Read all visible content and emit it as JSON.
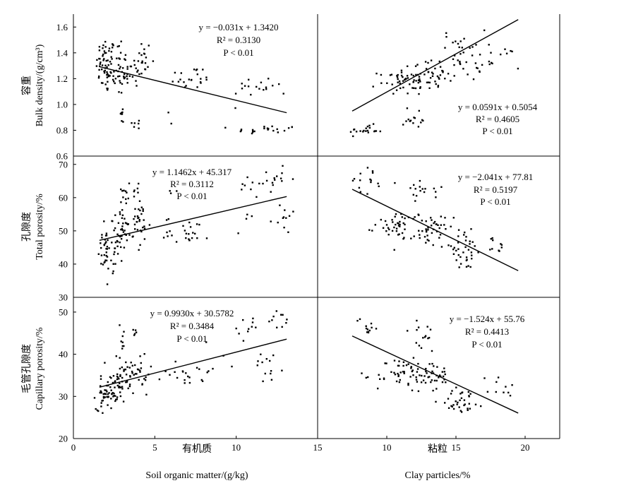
{
  "figure": {
    "x_labels": [
      {
        "cn": "有机质",
        "en": "Soil organic matter/(g/kg)"
      },
      {
        "cn": "粘粒",
        "en": "Clay particles/%"
      }
    ],
    "y_labels": [
      {
        "cn": "容重",
        "en": "Bulk density/(g/cm³)"
      },
      {
        "cn": "孔隙度",
        "en": "Total porosity/%"
      },
      {
        "cn": "毛管孔隙度",
        "en": "Capillary porosity/%"
      }
    ]
  },
  "chart_data": [
    {
      "type": "scatter",
      "row": 0,
      "col": 0,
      "xlabel": "Soil organic matter/(g/kg)",
      "ylabel": "Bulk density/(g/cm³)",
      "xlim": [
        0,
        15
      ],
      "ylim": [
        0.6,
        1.7
      ],
      "xticks": [
        0,
        5,
        10,
        15
      ],
      "yticks": [
        0.6,
        0.8,
        1.0,
        1.2,
        1.4,
        1.6
      ],
      "yticklabels": [
        "0.6",
        "0.8",
        "1.0",
        "1.2",
        "1.4",
        "1.6"
      ],
      "fit": {
        "slope": -0.031,
        "intercept": 1.342
      },
      "annotation": {
        "equation": "y = −0.031x + 1.3420",
        "r2_label": "R² = 0.3130",
        "p_label": "P < 0.01",
        "pos": "top-right"
      },
      "clusters": [
        {
          "cx": 2.0,
          "cy": 1.3,
          "sx": 0.3,
          "sy": 0.11,
          "n": 55
        },
        {
          "cx": 2.7,
          "cy": 1.3,
          "sx": 0.35,
          "sy": 0.12,
          "n": 35
        },
        {
          "cx": 3.2,
          "cy": 1.24,
          "sx": 0.4,
          "sy": 0.06,
          "n": 18
        },
        {
          "cx": 4.2,
          "cy": 1.32,
          "sx": 0.3,
          "sy": 0.1,
          "n": 25
        },
        {
          "cx": 3.0,
          "cy": 0.92,
          "sx": 0.1,
          "sy": 0.04,
          "n": 8
        },
        {
          "cx": 3.9,
          "cy": 0.85,
          "sx": 0.15,
          "sy": 0.02,
          "n": 6
        },
        {
          "cx": 7.2,
          "cy": 1.2,
          "sx": 0.7,
          "sy": 0.05,
          "n": 22
        },
        {
          "cx": 6.0,
          "cy": 0.92,
          "sx": 0.1,
          "sy": 0.05,
          "n": 2
        },
        {
          "cx": 11.5,
          "cy": 1.14,
          "sx": 1.0,
          "sy": 0.04,
          "n": 18
        },
        {
          "cx": 11.8,
          "cy": 0.8,
          "sx": 1.0,
          "sy": 0.02,
          "n": 22
        }
      ]
    },
    {
      "type": "scatter",
      "row": 0,
      "col": 1,
      "xlabel": "Clay particles/%",
      "ylabel": "Bulk density/(g/cm³)",
      "xlim": [
        5,
        22.5
      ],
      "ylim": [
        0.6,
        1.7
      ],
      "xticks": [
        10,
        15,
        20
      ],
      "yticks": [
        0.6,
        0.8,
        1.0,
        1.2,
        1.4,
        1.6
      ],
      "fit": {
        "slope": 0.0591,
        "intercept": 0.5054,
        "x_range": [
          7.5,
          19.5
        ]
      },
      "annotation": {
        "equation": "y = 0.0591x + 0.5054",
        "r2_label": "R² = 0.4605",
        "p_label": "P < 0.01",
        "pos": "bottom-right"
      },
      "clusters": [
        {
          "cx": 8.5,
          "cy": 0.8,
          "sx": 0.6,
          "sy": 0.02,
          "n": 20
        },
        {
          "cx": 11.0,
          "cy": 1.18,
          "sx": 0.8,
          "sy": 0.05,
          "n": 40
        },
        {
          "cx": 13.0,
          "cy": 1.22,
          "sx": 0.9,
          "sy": 0.06,
          "n": 45
        },
        {
          "cx": 12.0,
          "cy": 0.88,
          "sx": 0.6,
          "sy": 0.05,
          "n": 14
        },
        {
          "cx": 15.5,
          "cy": 1.38,
          "sx": 0.8,
          "sy": 0.1,
          "n": 40
        },
        {
          "cx": 18.0,
          "cy": 1.33,
          "sx": 0.8,
          "sy": 0.06,
          "n": 12
        }
      ]
    },
    {
      "type": "scatter",
      "row": 1,
      "col": 0,
      "xlabel": "Soil organic matter/(g/kg)",
      "ylabel": "Total porosity/%",
      "xlim": [
        0,
        15
      ],
      "ylim": [
        30,
        72.5
      ],
      "xticks": [
        0,
        5,
        10,
        15
      ],
      "yticks": [
        30,
        40,
        50,
        60,
        70
      ],
      "fit": {
        "slope": 1.1462,
        "intercept": 45.317
      },
      "annotation": {
        "equation": "y = 1.1462x + 45.317",
        "r2_label": "R² = 0.3112",
        "p_label": "P < 0.01",
        "pos": "top-center"
      },
      "clusters": [
        {
          "cx": 1.9,
          "cy": 44.0,
          "sx": 0.2,
          "sy": 3.5,
          "n": 30
        },
        {
          "cx": 2.7,
          "cy": 46.0,
          "sx": 0.3,
          "sy": 3.5,
          "n": 30
        },
        {
          "cx": 3.2,
          "cy": 51.0,
          "sx": 0.5,
          "sy": 2.5,
          "n": 30
        },
        {
          "cx": 3.2,
          "cy": 61.0,
          "sx": 0.3,
          "sy": 3.0,
          "n": 12
        },
        {
          "cx": 4.1,
          "cy": 51.0,
          "sx": 0.3,
          "sy": 4.0,
          "n": 25
        },
        {
          "cx": 4.0,
          "cy": 62.0,
          "sx": 0.2,
          "sy": 2.0,
          "n": 6
        },
        {
          "cx": 7.0,
          "cy": 50.0,
          "sx": 0.7,
          "sy": 2.0,
          "n": 25
        },
        {
          "cx": 6.2,
          "cy": 61.5,
          "sx": 0.2,
          "sy": 0.5,
          "n": 3
        },
        {
          "cx": 11.0,
          "cy": 63.0,
          "sx": 0.6,
          "sy": 1.5,
          "n": 12
        },
        {
          "cx": 12.5,
          "cy": 66.5,
          "sx": 0.5,
          "sy": 1.5,
          "n": 10
        },
        {
          "cx": 12.0,
          "cy": 54.0,
          "sx": 0.9,
          "sy": 2.5,
          "n": 15
        }
      ]
    },
    {
      "type": "scatter",
      "row": 1,
      "col": 1,
      "xlabel": "Clay particles/%",
      "ylabel": "Total porosity/%",
      "xlim": [
        5,
        22.5
      ],
      "ylim": [
        30,
        72.5
      ],
      "xticks": [
        10,
        15,
        20
      ],
      "yticks": [
        30,
        40,
        50,
        60,
        70
      ],
      "fit": {
        "slope": -2.041,
        "intercept": 77.81,
        "x_range": [
          7.5,
          19.5
        ]
      },
      "annotation": {
        "equation": "y = −2.041x + 77.81",
        "r2_label": "R² = 0.5197",
        "p_label": "P < 0.01",
        "pos": "top-right"
      },
      "clusters": [
        {
          "cx": 8.5,
          "cy": 65.0,
          "sx": 0.6,
          "sy": 2.0,
          "n": 15
        },
        {
          "cx": 11.0,
          "cy": 52.0,
          "sx": 0.9,
          "sy": 2.0,
          "n": 40
        },
        {
          "cx": 13.0,
          "cy": 50.0,
          "sx": 0.9,
          "sy": 2.5,
          "n": 45
        },
        {
          "cx": 12.5,
          "cy": 61.0,
          "sx": 0.8,
          "sy": 3.0,
          "n": 18
        },
        {
          "cx": 15.5,
          "cy": 44.0,
          "sx": 0.8,
          "sy": 3.0,
          "n": 35
        },
        {
          "cx": 18.0,
          "cy": 45.0,
          "sx": 0.7,
          "sy": 1.5,
          "n": 10
        }
      ]
    },
    {
      "type": "scatter",
      "row": 2,
      "col": 0,
      "xlabel": "Soil organic matter/(g/kg)",
      "ylabel": "Capillary porosity/%",
      "xlim": [
        0,
        15
      ],
      "ylim": [
        20,
        53.5
      ],
      "xticks": [
        0,
        5,
        10,
        15
      ],
      "yticks": [
        20,
        30,
        40,
        50
      ],
      "fit": {
        "slope": 0.993,
        "intercept": 30.5782
      },
      "annotation": {
        "equation": "y = 0.9930x + 30.5782",
        "r2_label": "R² = 0.3484",
        "p_label": "P < 0.01",
        "pos": "top-center"
      },
      "clusters": [
        {
          "cx": 2.0,
          "cy": 30.5,
          "sx": 0.3,
          "sy": 1.8,
          "n": 45
        },
        {
          "cx": 2.7,
          "cy": 32.0,
          "sx": 0.3,
          "sy": 2.0,
          "n": 35
        },
        {
          "cx": 3.2,
          "cy": 36.0,
          "sx": 0.5,
          "sy": 2.0,
          "n": 25
        },
        {
          "cx": 3.0,
          "cy": 44.5,
          "sx": 0.1,
          "sy": 2.0,
          "n": 8
        },
        {
          "cx": 4.1,
          "cy": 35.5,
          "sx": 0.3,
          "sy": 2.5,
          "n": 20
        },
        {
          "cx": 3.9,
          "cy": 45.0,
          "sx": 0.15,
          "sy": 1.0,
          "n": 5
        },
        {
          "cx": 7.0,
          "cy": 36.0,
          "sx": 0.7,
          "sy": 2.0,
          "n": 22
        },
        {
          "cx": 10.8,
          "cy": 46.5,
          "sx": 0.5,
          "sy": 1.5,
          "n": 10
        },
        {
          "cx": 12.8,
          "cy": 48.0,
          "sx": 0.4,
          "sy": 1.3,
          "n": 10
        },
        {
          "cx": 11.5,
          "cy": 37.0,
          "sx": 1.0,
          "sy": 2.0,
          "n": 15
        }
      ]
    },
    {
      "type": "scatter",
      "row": 2,
      "col": 1,
      "xlabel": "Clay particles/%",
      "ylabel": "Capillary porosity/%",
      "xlim": [
        5,
        22.5
      ],
      "ylim": [
        20,
        53.5
      ],
      "xticks": [
        10,
        15,
        20
      ],
      "yticks": [
        20,
        30,
        40,
        50
      ],
      "xticklabels": [
        "10",
        "15",
        "20"
      ],
      "fit": {
        "slope": -1.524,
        "intercept": 55.76,
        "x_range": [
          7.5,
          19.5
        ]
      },
      "annotation": {
        "equation": "y = −1.524x + 55.76",
        "r2_label": "R² = 0.4413",
        "p_label": "P < 0.01",
        "pos": "top-right"
      },
      "clusters": [
        {
          "cx": 8.7,
          "cy": 47.0,
          "sx": 0.5,
          "sy": 1.5,
          "n": 12
        },
        {
          "cx": 11.0,
          "cy": 35.0,
          "sx": 0.9,
          "sy": 2.0,
          "n": 40
        },
        {
          "cx": 13.0,
          "cy": 35.0,
          "sx": 0.9,
          "sy": 2.0,
          "n": 45
        },
        {
          "cx": 12.5,
          "cy": 44.0,
          "sx": 0.7,
          "sy": 2.0,
          "n": 15
        },
        {
          "cx": 15.5,
          "cy": 29.0,
          "sx": 0.8,
          "sy": 1.5,
          "n": 35
        },
        {
          "cx": 18.0,
          "cy": 32.0,
          "sx": 0.8,
          "sy": 1.5,
          "n": 10
        }
      ]
    }
  ]
}
